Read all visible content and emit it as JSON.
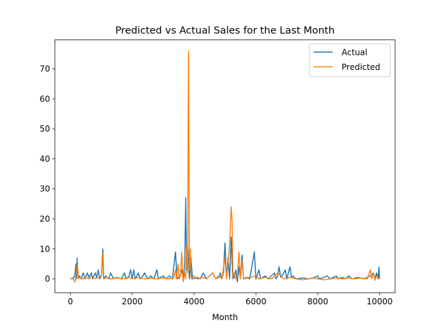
{
  "chart_data": {
    "type": "line",
    "title": "Predicted vs Actual Sales for the Last Month",
    "xlabel": "Month",
    "ylabel": "",
    "xlim": [
      -500,
      10500
    ],
    "ylim": [
      -4.6,
      79.7
    ],
    "xticks": [
      0,
      2000,
      4000,
      6000,
      8000,
      10000
    ],
    "yticks": [
      0,
      10,
      20,
      30,
      40,
      50,
      60,
      70
    ],
    "grid": false,
    "legend_position": "top-right",
    "series": [
      {
        "name": "Actual",
        "color": "#1f77b4",
        "points": [
          [
            0,
            0
          ],
          [
            100,
            0.3
          ],
          [
            150,
            1.5
          ],
          [
            180,
            5
          ],
          [
            200,
            0
          ],
          [
            220,
            7
          ],
          [
            250,
            0.5
          ],
          [
            300,
            1
          ],
          [
            350,
            0
          ],
          [
            420,
            2
          ],
          [
            480,
            0
          ],
          [
            550,
            2
          ],
          [
            600,
            0.5
          ],
          [
            680,
            2
          ],
          [
            720,
            0
          ],
          [
            800,
            2
          ],
          [
            850,
            0.5
          ],
          [
            900,
            3
          ],
          [
            950,
            0
          ],
          [
            1000,
            1
          ],
          [
            1050,
            10
          ],
          [
            1080,
            0
          ],
          [
            1150,
            1
          ],
          [
            1250,
            0
          ],
          [
            1300,
            2
          ],
          [
            1400,
            0
          ],
          [
            1500,
            0.5
          ],
          [
            1650,
            0
          ],
          [
            1750,
            2
          ],
          [
            1800,
            0
          ],
          [
            1900,
            1
          ],
          [
            1950,
            3
          ],
          [
            2000,
            0
          ],
          [
            2050,
            3
          ],
          [
            2100,
            0
          ],
          [
            2200,
            2
          ],
          [
            2250,
            0
          ],
          [
            2350,
            1
          ],
          [
            2400,
            2
          ],
          [
            2500,
            0
          ],
          [
            2600,
            1
          ],
          [
            2700,
            0
          ],
          [
            2800,
            3
          ],
          [
            2850,
            0
          ],
          [
            3000,
            1
          ],
          [
            3100,
            0
          ],
          [
            3200,
            1
          ],
          [
            3300,
            0
          ],
          [
            3400,
            9
          ],
          [
            3450,
            0
          ],
          [
            3550,
            1
          ],
          [
            3600,
            3
          ],
          [
            3650,
            0
          ],
          [
            3700,
            5
          ],
          [
            3730,
            27
          ],
          [
            3760,
            3
          ],
          [
            3800,
            10
          ],
          [
            3850,
            0
          ],
          [
            3900,
            7
          ],
          [
            3950,
            0
          ],
          [
            4100,
            0.5
          ],
          [
            4200,
            0
          ],
          [
            4300,
            2
          ],
          [
            4400,
            0
          ],
          [
            4500,
            1
          ],
          [
            4600,
            2
          ],
          [
            4700,
            0
          ],
          [
            4800,
            0.5
          ],
          [
            4850,
            2
          ],
          [
            4900,
            0
          ],
          [
            4950,
            2
          ],
          [
            5000,
            12
          ],
          [
            5050,
            0
          ],
          [
            5100,
            7
          ],
          [
            5150,
            0
          ],
          [
            5200,
            14
          ],
          [
            5250,
            0
          ],
          [
            5300,
            0.5
          ],
          [
            5350,
            3
          ],
          [
            5400,
            -1
          ],
          [
            5450,
            4
          ],
          [
            5500,
            0
          ],
          [
            5550,
            8
          ],
          [
            5600,
            0
          ],
          [
            5700,
            0.5
          ],
          [
            5800,
            0
          ],
          [
            5950,
            9
          ],
          [
            6000,
            0
          ],
          [
            6100,
            3
          ],
          [
            6150,
            0
          ],
          [
            6300,
            1
          ],
          [
            6400,
            0
          ],
          [
            6500,
            1
          ],
          [
            6600,
            2
          ],
          [
            6650,
            0
          ],
          [
            6700,
            1
          ],
          [
            6750,
            4
          ],
          [
            6800,
            0.5
          ],
          [
            6900,
            2
          ],
          [
            6950,
            3
          ],
          [
            7000,
            0
          ],
          [
            7100,
            4
          ],
          [
            7150,
            0.5
          ],
          [
            7200,
            1
          ],
          [
            7300,
            0
          ],
          [
            7500,
            0.3
          ],
          [
            7700,
            0
          ],
          [
            7900,
            0.5
          ],
          [
            8000,
            1
          ],
          [
            8050,
            0
          ],
          [
            8200,
            0.5
          ],
          [
            8300,
            1
          ],
          [
            8400,
            0
          ],
          [
            8600,
            1
          ],
          [
            8650,
            0
          ],
          [
            8800,
            0.5
          ],
          [
            8900,
            0
          ],
          [
            9000,
            1
          ],
          [
            9100,
            0
          ],
          [
            9300,
            0.5
          ],
          [
            9500,
            0
          ],
          [
            9700,
            1
          ],
          [
            9800,
            2
          ],
          [
            9850,
            0
          ],
          [
            9900,
            2
          ],
          [
            9950,
            0
          ],
          [
            9980,
            4
          ],
          [
            10000,
            0
          ]
        ]
      },
      {
        "name": "Predicted",
        "color": "#ff7f0e",
        "points": [
          [
            0,
            0
          ],
          [
            100,
            0
          ],
          [
            150,
            -1
          ],
          [
            200,
            3
          ],
          [
            230,
            5
          ],
          [
            260,
            0
          ],
          [
            300,
            0.5
          ],
          [
            400,
            0
          ],
          [
            500,
            0.5
          ],
          [
            600,
            0
          ],
          [
            700,
            1
          ],
          [
            800,
            0
          ],
          [
            900,
            0.5
          ],
          [
            1000,
            1
          ],
          [
            1040,
            8.5
          ],
          [
            1070,
            0
          ],
          [
            1200,
            0.5
          ],
          [
            1300,
            0
          ],
          [
            1500,
            0.3
          ],
          [
            1700,
            0
          ],
          [
            1900,
            0.5
          ],
          [
            2000,
            0
          ],
          [
            2200,
            0.5
          ],
          [
            2400,
            0
          ],
          [
            2600,
            0.3
          ],
          [
            2800,
            0
          ],
          [
            3000,
            0.3
          ],
          [
            3200,
            0
          ],
          [
            3350,
            0.5
          ],
          [
            3400,
            3
          ],
          [
            3430,
            0
          ],
          [
            3480,
            5
          ],
          [
            3520,
            0
          ],
          [
            3560,
            1
          ],
          [
            3600,
            9
          ],
          [
            3650,
            -1
          ],
          [
            3700,
            2
          ],
          [
            3730,
            0
          ],
          [
            3760,
            11
          ],
          [
            3790,
            2
          ],
          [
            3820,
            76
          ],
          [
            3850,
            3
          ],
          [
            3880,
            10
          ],
          [
            3910,
            0
          ],
          [
            4000,
            1
          ],
          [
            4100,
            0
          ],
          [
            4300,
            0.5
          ],
          [
            4400,
            0
          ],
          [
            4600,
            2
          ],
          [
            4700,
            0
          ],
          [
            4800,
            1
          ],
          [
            4900,
            0
          ],
          [
            5000,
            7
          ],
          [
            5050,
            0
          ],
          [
            5100,
            5
          ],
          [
            5150,
            12
          ],
          [
            5200,
            24
          ],
          [
            5230,
            19
          ],
          [
            5260,
            0
          ],
          [
            5300,
            2
          ],
          [
            5350,
            0
          ],
          [
            5400,
            0.5
          ],
          [
            5450,
            9
          ],
          [
            5500,
            0
          ],
          [
            5550,
            6
          ],
          [
            5600,
            0
          ],
          [
            5800,
            0.5
          ],
          [
            6000,
            1
          ],
          [
            6100,
            0
          ],
          [
            6300,
            0.5
          ],
          [
            6500,
            0
          ],
          [
            6700,
            2
          ],
          [
            6800,
            1
          ],
          [
            6900,
            0
          ],
          [
            7100,
            0.5
          ],
          [
            7300,
            0
          ],
          [
            7500,
            -0.3
          ],
          [
            7700,
            0
          ],
          [
            7900,
            0.3
          ],
          [
            8000,
            0
          ],
          [
            8200,
            -0.3
          ],
          [
            8400,
            0
          ],
          [
            8600,
            0.3
          ],
          [
            8800,
            0
          ],
          [
            9000,
            0.3
          ],
          [
            9200,
            0
          ],
          [
            9400,
            0.3
          ],
          [
            9600,
            0
          ],
          [
            9700,
            3
          ],
          [
            9750,
            0
          ],
          [
            9800,
            2
          ],
          [
            9850,
            -0.5
          ],
          [
            9900,
            1
          ],
          [
            10000,
            0
          ]
        ]
      }
    ]
  }
}
